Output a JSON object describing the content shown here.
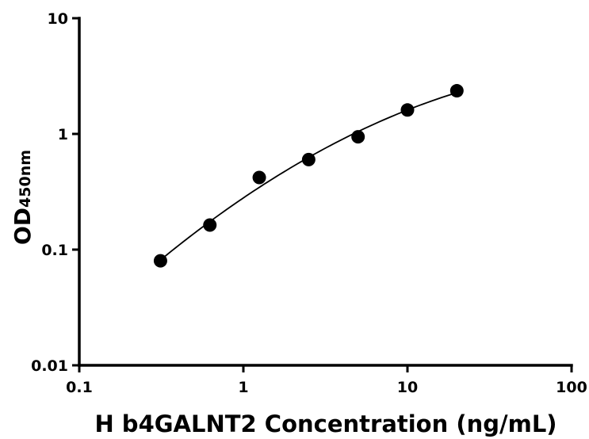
{
  "chart_data": {
    "type": "scatter",
    "xscale": "log",
    "yscale": "log",
    "xlim": [
      0.1,
      100
    ],
    "ylim": [
      0.01,
      10
    ],
    "xlabel": "H b4GALNT2 Concentration (ng/mL)",
    "ylabel_main": "OD",
    "ylabel_sub": "450nm",
    "x_ticks": [
      0.1,
      1,
      10,
      100
    ],
    "x_tick_labels": [
      "0.1",
      "1",
      "10",
      "100"
    ],
    "y_ticks": [
      0.01,
      0.1,
      1,
      10
    ],
    "y_tick_labels": [
      "0.01",
      "0.1",
      "1",
      "10"
    ],
    "grid": false,
    "series": [
      {
        "x": [
          0.3125,
          0.625,
          1.25,
          2.5,
          5,
          10,
          20
        ],
        "y": [
          0.08,
          0.163,
          0.42,
          0.6,
          0.945,
          1.61,
          2.36
        ]
      }
    ],
    "fit_curve": true,
    "colors": {
      "points": "#000000",
      "curve": "#000000",
      "axes": "#000000"
    }
  }
}
